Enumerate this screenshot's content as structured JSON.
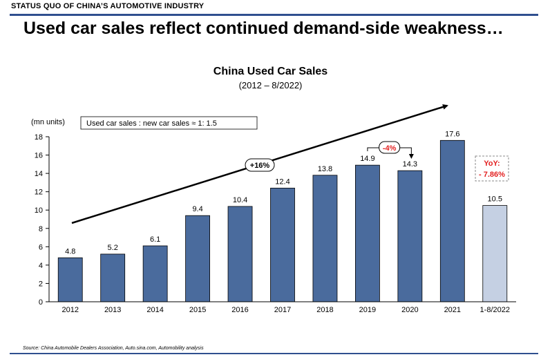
{
  "header": {
    "section": "STATUS QUO OF CHINA’S AUTOMOTIVE INDUSTRY",
    "headline": "Used car sales reflect continued demand-side weakness…"
  },
  "chart_data": {
    "type": "bar",
    "title": "China Used Car Sales",
    "subtitle": "(2012 – 8/2022)",
    "unit_label": "(mn units)",
    "categories": [
      "2012",
      "2013",
      "2014",
      "2015",
      "2016",
      "2017",
      "2018",
      "2019",
      "2020",
      "2021",
      "1-8/2022"
    ],
    "values": [
      4.8,
      5.2,
      6.1,
      9.4,
      10.4,
      12.4,
      13.8,
      14.9,
      14.3,
      17.6,
      10.5
    ],
    "value_labels": [
      "4.8",
      "5.2",
      "6.1",
      "9.4",
      "10.4",
      "12.4",
      "13.8",
      "14.9",
      "14.3",
      "17.6",
      "10.5"
    ],
    "ylim": [
      0,
      18
    ],
    "yticks": [
      0,
      2,
      4,
      6,
      8,
      10,
      12,
      14,
      16,
      18
    ],
    "grid": false,
    "colors": {
      "bar": "#4a6b9d",
      "bar_highlight": "#c5d0e3",
      "annotation_red": "#e32020"
    },
    "annotations": {
      "ratio_box": "Used car sales : new car sales ≈ 1: 1.5",
      "growth_label": "+16%",
      "drop_label": "-4%",
      "yoy_line1": "YoY:",
      "yoy_line2": "- 7.86%"
    }
  },
  "source": "Source: China Automobile Dealers Association, Auto.sina.com, Automobility analysis"
}
